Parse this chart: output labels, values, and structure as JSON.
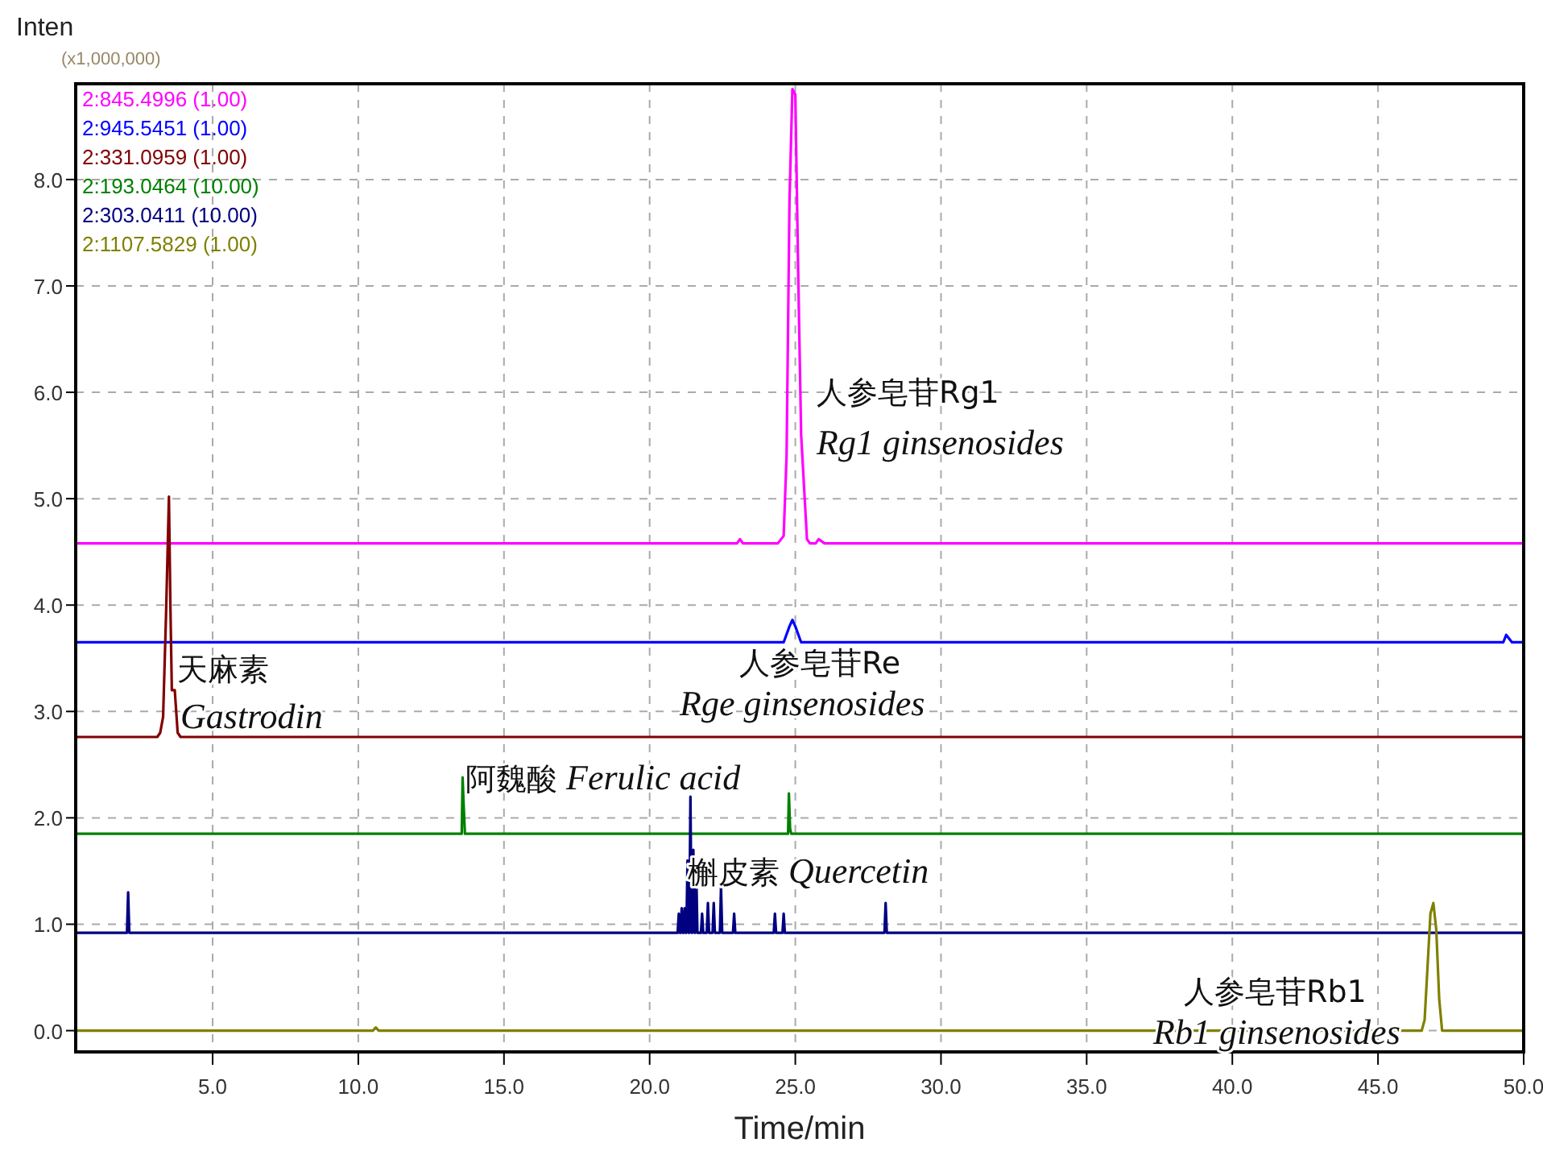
{
  "chart_data": {
    "type": "line",
    "ylabel": "Inten",
    "xlabel": "Time/min",
    "xlim": [
      0.3,
      50
    ],
    "ylim": [
      -0.2,
      8.9
    ],
    "xticks": [
      {
        "value": 5,
        "label": "5.0"
      },
      {
        "value": 10,
        "label": "10.0"
      },
      {
        "value": 15,
        "label": "15.0"
      },
      {
        "value": 20,
        "label": "20.0"
      },
      {
        "value": 25,
        "label": "25.0"
      },
      {
        "value": 30,
        "label": "30.0"
      },
      {
        "value": 35,
        "label": "35.0"
      },
      {
        "value": 40,
        "label": "40.0"
      },
      {
        "value": 45,
        "label": "45.0"
      },
      {
        "value": 50,
        "label": "50.0"
      }
    ],
    "yticks": [
      {
        "value": 0,
        "label": "0.0"
      },
      {
        "value": 1,
        "label": "1.0"
      },
      {
        "value": 2,
        "label": "2.0"
      },
      {
        "value": 3,
        "label": "3.0"
      },
      {
        "value": 4,
        "label": "4.0"
      },
      {
        "value": 5,
        "label": "5.0"
      },
      {
        "value": 6,
        "label": "6.0"
      },
      {
        "value": 7,
        "label": "7.0"
      },
      {
        "value": 8,
        "label": "8.0"
      }
    ],
    "grid": true,
    "legend": "top left",
    "line_style": "solid",
    "marker": "none",
    "series": [
      {
        "name": "2:845.4996 (1.00)",
        "color": "#ff00ff",
        "x": [
          0.3,
          23.0,
          23.1,
          23.2,
          24.4,
          24.6,
          24.7,
          24.8,
          24.9,
          25.0,
          25.1,
          25.2,
          25.4,
          25.5,
          25.7,
          25.8,
          26.0,
          50
        ],
        "values": [
          4.58,
          4.58,
          4.62,
          4.58,
          4.58,
          4.65,
          5.4,
          7.8,
          8.85,
          8.8,
          7.1,
          5.6,
          4.62,
          4.58,
          4.58,
          4.62,
          4.58,
          4.58
        ]
      },
      {
        "name": "2:945.5451 (1.00)",
        "color": "#0000ff",
        "x": [
          0.3,
          24.6,
          24.8,
          24.9,
          25.0,
          25.2,
          49.3,
          49.4,
          49.6,
          50
        ],
        "values": [
          3.65,
          3.65,
          3.8,
          3.86,
          3.8,
          3.65,
          3.65,
          3.72,
          3.65,
          3.65
        ]
      },
      {
        "name": "2:331.0959 (1.00)",
        "color": "#800000",
        "x": [
          0.3,
          3.1,
          3.2,
          3.3,
          3.4,
          3.5,
          3.55,
          3.6,
          3.7,
          3.8,
          3.9,
          50
        ],
        "values": [
          2.76,
          2.76,
          2.8,
          2.95,
          3.9,
          5.02,
          4.0,
          3.2,
          3.2,
          2.8,
          2.76,
          2.76
        ]
      },
      {
        "name": "2:193.0464 (10.00)",
        "color": "#008000",
        "x": [
          0.3,
          13.55,
          13.58,
          13.62,
          13.66,
          24.75,
          24.78,
          24.82,
          24.86,
          50
        ],
        "values": [
          1.85,
          1.85,
          2.38,
          2.1,
          1.85,
          1.85,
          2.23,
          1.9,
          1.85,
          1.85
        ]
      },
      {
        "name": "2:303.0411 (10.00)",
        "color": "#000080",
        "x": [
          0.3,
          2.06,
          2.1,
          2.14,
          20.96,
          21.0,
          21.04,
          21.06,
          21.1,
          21.14,
          21.16,
          21.2,
          21.24,
          21.26,
          21.3,
          21.34,
          21.36,
          21.4,
          21.44,
          21.46,
          21.5,
          21.54,
          21.56,
          21.6,
          21.64,
          21.76,
          21.8,
          21.84,
          21.96,
          22.0,
          22.04,
          22.16,
          22.2,
          22.24,
          22.41,
          22.45,
          22.49,
          22.86,
          22.9,
          22.94,
          24.26,
          24.3,
          24.34,
          24.56,
          24.6,
          24.64,
          28.06,
          28.1,
          28.14,
          50
        ],
        "values": [
          0.92,
          0.92,
          1.3,
          0.92,
          0.92,
          1.1,
          0.92,
          0.92,
          1.15,
          0.92,
          0.92,
          1.15,
          0.92,
          0.92,
          1.6,
          0.92,
          0.92,
          2.2,
          0.92,
          0.92,
          1.7,
          0.92,
          0.92,
          1.5,
          0.92,
          0.92,
          1.1,
          0.92,
          0.92,
          1.2,
          0.92,
          0.92,
          1.2,
          0.92,
          0.92,
          1.35,
          0.92,
          0.92,
          1.1,
          0.92,
          0.92,
          1.1,
          0.92,
          0.92,
          1.1,
          0.92,
          0.92,
          1.2,
          0.92,
          0.92
        ]
      },
      {
        "name": "2:1107.5829 (1.00)",
        "color": "#808000",
        "x": [
          0.3,
          10.5,
          10.6,
          10.7,
          46.5,
          46.6,
          46.7,
          46.8,
          46.9,
          47.0,
          47.1,
          47.2,
          50
        ],
        "values": [
          0,
          0,
          0.03,
          0,
          0,
          0.1,
          0.6,
          1.1,
          1.2,
          0.95,
          0.3,
          0,
          0
        ]
      }
    ],
    "annotations": [
      "(x1,000,000)",
      "人参皂苷Rg1",
      "Rg1 ginsenosides",
      "天麻素",
      "Gastrodin",
      "人参皂苷Re",
      "Rge ginsenosides",
      "阿魏酸 Ferulic acid",
      "槲皮素 Quercetin",
      "人参皂苷Rb1",
      "Rb1 ginsenosides"
    ]
  }
}
